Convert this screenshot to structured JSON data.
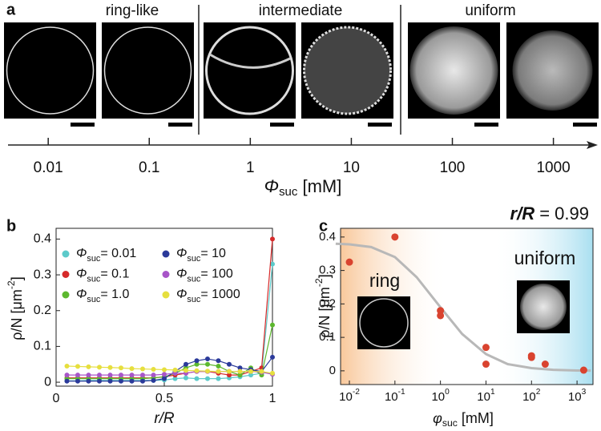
{
  "chart_data": [
    {
      "type": "axis",
      "panel_label": "a",
      "groups": [
        "ring-like",
        "intermediate",
        "uniform"
      ],
      "x_label": "Φ",
      "x_label_sub": "suc",
      "x_label_unit": " [mM]",
      "log_x": true,
      "xlim": [
        0.004,
        2700
      ],
      "xticks": [
        0.01,
        0.1,
        1,
        10,
        100,
        1000
      ]
    },
    {
      "type": "line",
      "panel_label": "b",
      "x": [
        0.05,
        0.1,
        0.15,
        0.2,
        0.25,
        0.3,
        0.35,
        0.4,
        0.45,
        0.5,
        0.55,
        0.6,
        0.65,
        0.7,
        0.75,
        0.8,
        0.85,
        0.9,
        0.95,
        1
      ],
      "legend_symbol": "Φ",
      "legend_sub": "suc",
      "series": [
        {
          "name": "= 0.01",
          "color": "#5ccaca",
          "values": [
            0.004,
            0.004,
            0.005,
            0.005,
            0.005,
            0.005,
            0.005,
            0.005,
            0.005,
            0.006,
            0.01,
            0.012,
            0.01,
            0.01,
            0.01,
            0.012,
            0.015,
            0.02,
            0.025,
            0.33
          ]
        },
        {
          "name": "= 0.1",
          "color": "#d62a2a",
          "values": [
            0.012,
            0.012,
            0.012,
            0.012,
            0.012,
            0.012,
            0.012,
            0.012,
            0.012,
            0.015,
            0.02,
            0.025,
            0.03,
            0.03,
            0.025,
            0.02,
            0.02,
            0.03,
            0.04,
            0.4
          ]
        },
        {
          "name": "= 1.0",
          "color": "#5cb82e",
          "values": [
            0.01,
            0.01,
            0.01,
            0.01,
            0.01,
            0.01,
            0.01,
            0.01,
            0.012,
            0.015,
            0.025,
            0.04,
            0.05,
            0.05,
            0.045,
            0.03,
            0.02,
            0.04,
            0.02,
            0.16
          ]
        },
        {
          "name": "= 10",
          "color": "#2b3a9a",
          "values": [
            0.003,
            0.003,
            0.003,
            0.003,
            0.003,
            0.003,
            0.003,
            0.003,
            0.005,
            0.01,
            0.03,
            0.05,
            0.06,
            0.065,
            0.06,
            0.05,
            0.04,
            0.035,
            0.03,
            0.07
          ]
        },
        {
          "name": "= 100",
          "color": "#a855c8",
          "values": [
            0.02,
            0.02,
            0.02,
            0.02,
            0.02,
            0.02,
            0.02,
            0.02,
            0.02,
            0.022,
            0.025,
            0.025,
            0.03,
            0.03,
            0.03,
            0.03,
            0.03,
            0.03,
            0.028,
            0.022
          ]
        },
        {
          "name": "= 1000",
          "color": "#e6df3e",
          "values": [
            0.045,
            0.044,
            0.043,
            0.042,
            0.041,
            0.04,
            0.038,
            0.037,
            0.036,
            0.035,
            0.034,
            0.033,
            0.032,
            0.031,
            0.03,
            0.03,
            0.03,
            0.03,
            0.03,
            0.025
          ]
        }
      ],
      "xlim": [
        0,
        1
      ],
      "xticks": [
        0,
        0.5,
        1
      ],
      "ylim": [
        -0.011,
        0.43
      ],
      "yticks": [
        0,
        0.1,
        0.2,
        0.3,
        0.4
      ],
      "x_label": "r/R",
      "y_label": "ρ/N [μm",
      "y_label_sup": "-2",
      "y_label_end": "]"
    },
    {
      "type": "scatter",
      "panel_label": "c",
      "title": "r/R",
      "title_rest": " = 0.99",
      "points": {
        "color": "#d9432f",
        "x": [
          0.01,
          0.1,
          1,
          1,
          10,
          10,
          100,
          100,
          200,
          1400
        ],
        "values": [
          0.325,
          0.4,
          0.18,
          0.165,
          0.07,
          0.02,
          0.045,
          0.04,
          0.02,
          0.002
        ]
      },
      "fit": {
        "color": "#b8b8b8",
        "x": [
          0.005,
          0.01,
          0.03,
          0.1,
          0.3,
          1,
          3,
          10,
          30,
          100,
          300,
          1000,
          2000
        ],
        "values": [
          0.38,
          0.378,
          0.37,
          0.34,
          0.28,
          0.19,
          0.11,
          0.05,
          0.02,
          0.008,
          0.003,
          0.001,
          0.0005
        ]
      },
      "annotations": [
        "ring",
        "uniform"
      ],
      "log_x": true,
      "xlim": [
        0.0064,
        2240
      ],
      "xticks": [
        {
          "value": 0.01,
          "label": "10",
          "exponent": "-2"
        },
        {
          "value": 0.1,
          "label": "10",
          "exponent": "-1"
        },
        {
          "value": 1,
          "label": "10",
          "exponent": "0"
        },
        {
          "value": 10,
          "label": "10",
          "exponent": "1"
        },
        {
          "value": 100,
          "label": "10",
          "exponent": "2"
        },
        {
          "value": 1000,
          "label": "10",
          "exponent": "3"
        }
      ],
      "ylim": [
        -0.041,
        0.426
      ],
      "yticks": [
        0,
        0.1,
        0.2,
        0.3,
        0.4
      ],
      "x_label": "φ",
      "x_label_sub": "suc",
      "x_label_unit": " [mM]",
      "y_label": "ρ/N [μm",
      "y_label_sup": "-2",
      "y_label_end": "]"
    }
  ]
}
